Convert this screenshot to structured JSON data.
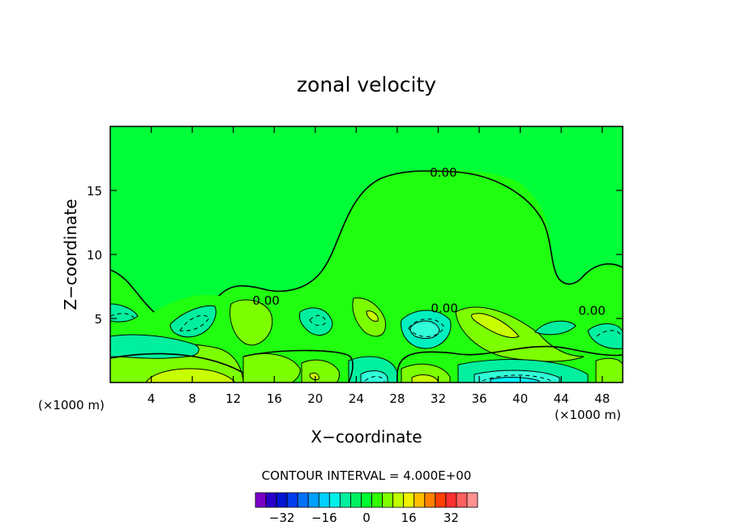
{
  "chart_data": {
    "type": "contour",
    "title": "zonal velocity",
    "xlabel": "X−coordinate",
    "ylabel": "Z−coordinate",
    "x_unit_left": "(×1000 m)",
    "x_unit_right": "(×1000 m)",
    "xlim": [
      0,
      50
    ],
    "ylim": [
      0,
      20
    ],
    "x_ticks": [
      4,
      8,
      12,
      16,
      20,
      24,
      28,
      32,
      36,
      40,
      44,
      48
    ],
    "y_ticks": [
      5,
      10,
      15
    ],
    "contour_interval_label": "CONTOUR INTERVAL = 4.000E+00",
    "contour_labels": [
      {
        "text": "0.00",
        "x": 32.5,
        "y": 16.4
      },
      {
        "text": "0.00",
        "x": 15.2,
        "y": 6.4
      },
      {
        "text": "0.00",
        "x": 32.6,
        "y": 5.8
      },
      {
        "text": "0.00",
        "x": 47.0,
        "y": 5.6
      }
    ],
    "colorbar": {
      "colors": [
        "#7a00c8",
        "#2800c8",
        "#0014d2",
        "#003cf0",
        "#0070ff",
        "#00a0ff",
        "#00d0ff",
        "#00f0e8",
        "#00f0a0",
        "#00f060",
        "#00ff30",
        "#30ff00",
        "#80ff00",
        "#c0ff00",
        "#f0f000",
        "#ffc000",
        "#ff8000",
        "#ff4000",
        "#ff3030",
        "#ff6060",
        "#ff9090"
      ],
      "tick_values": [
        -32,
        -16,
        0,
        16,
        32
      ],
      "tick_labels": [
        "−32",
        "−16",
        "0",
        "16",
        "32"
      ]
    }
  }
}
